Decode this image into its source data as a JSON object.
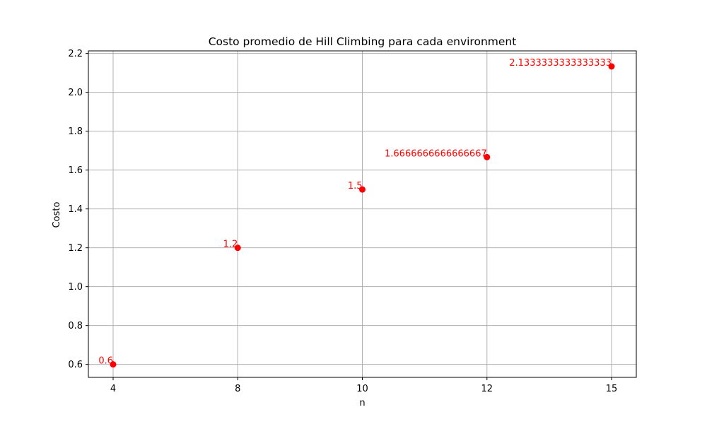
{
  "chart_data": {
    "type": "scatter",
    "title": "Costo promedio de Hill Climbing para cada environment",
    "xlabel": "n",
    "ylabel": "Costo",
    "x_scale": "categorical",
    "categories": [
      "4",
      "8",
      "10",
      "12",
      "15"
    ],
    "values": [
      0.6,
      1.2,
      1.5,
      1.6666666666666667,
      2.1333333333333333
    ],
    "data_labels": [
      "0.6",
      "1.2",
      "1.5",
      "1.6666666666666667",
      "2.1333333333333333"
    ],
    "ylim": [
      0.533,
      2.2
    ],
    "yticks": [
      0.6,
      0.8,
      1.0,
      1.2,
      1.4,
      1.6,
      1.8,
      2.0,
      2.2
    ],
    "ytick_labels": [
      "0.6",
      "0.8",
      "1.0",
      "1.2",
      "1.4",
      "1.6",
      "1.8",
      "2.0",
      "2.2"
    ],
    "grid": true,
    "color": "#ff0000"
  }
}
